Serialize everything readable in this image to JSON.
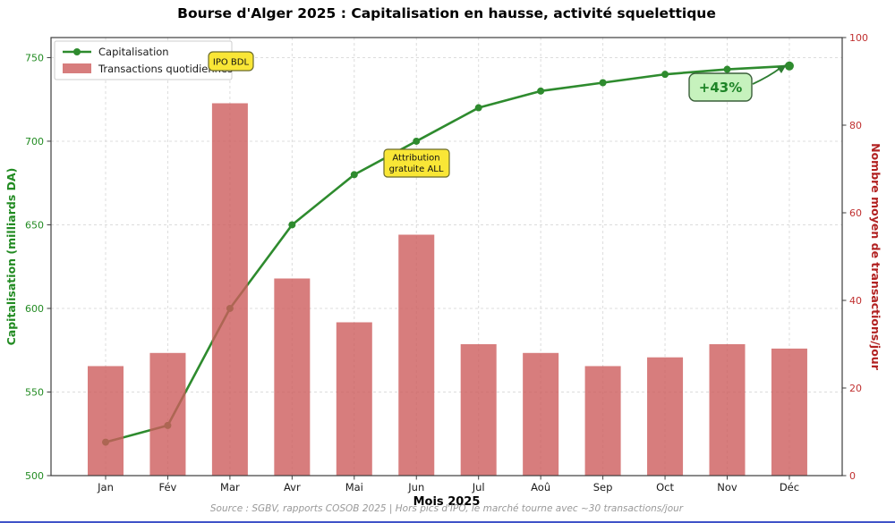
{
  "title": "Bourse d'Alger 2025 : Capitalisation en hausse, activité squelettique",
  "footer": "Source : SGBV, rapports COSOB 2025 | Hors pics d'IPO, le marché tourne avec ~30 transactions/jour",
  "chart_data": {
    "type": "bar+line combo, dual y-axis",
    "categories": [
      "Jan",
      "Fév",
      "Mar",
      "Avr",
      "Mai",
      "Jun",
      "Jul",
      "Aoû",
      "Sep",
      "Oct",
      "Nov",
      "Déc"
    ],
    "series": [
      {
        "name": "Capitalisation",
        "type": "line",
        "axis": "left",
        "color": "#2e8b2e",
        "values": [
          520,
          530,
          600,
          650,
          680,
          700,
          720,
          730,
          735,
          740,
          743,
          745
        ]
      },
      {
        "name": "Transactions quotidiennes",
        "type": "bar",
        "axis": "right",
        "color": "#cd5c5c",
        "opacity": 0.8,
        "values": [
          25,
          28,
          85,
          45,
          35,
          55,
          30,
          28,
          25,
          27,
          30,
          29
        ]
      }
    ],
    "xlabel": "Mois 2025",
    "left_axis": {
      "label": "Capitalisation (milliards DA)",
      "color": "#228b22",
      "ticks": [
        500,
        550,
        600,
        650,
        700,
        750
      ],
      "min": 500,
      "max": 762
    },
    "right_axis": {
      "label": "Nombre moyen de transactions/jour",
      "color": "#b22222",
      "ticks": [
        0,
        20,
        40,
        60,
        80,
        100
      ],
      "min": 0,
      "max": 100
    },
    "legend": {
      "position": "upper left",
      "entries": [
        "Capitalisation",
        "Transactions quotidiennes"
      ]
    },
    "grid": true,
    "annotations": [
      {
        "text": "IPO BDL",
        "style": "yellow-callout",
        "target": "Mar"
      },
      {
        "lines": [
          "Attribution",
          "gratuite ALL"
        ],
        "style": "yellow-callout",
        "target": "Jun"
      },
      {
        "text": "+43%",
        "style": "green-callout",
        "target": "Déc"
      }
    ]
  }
}
